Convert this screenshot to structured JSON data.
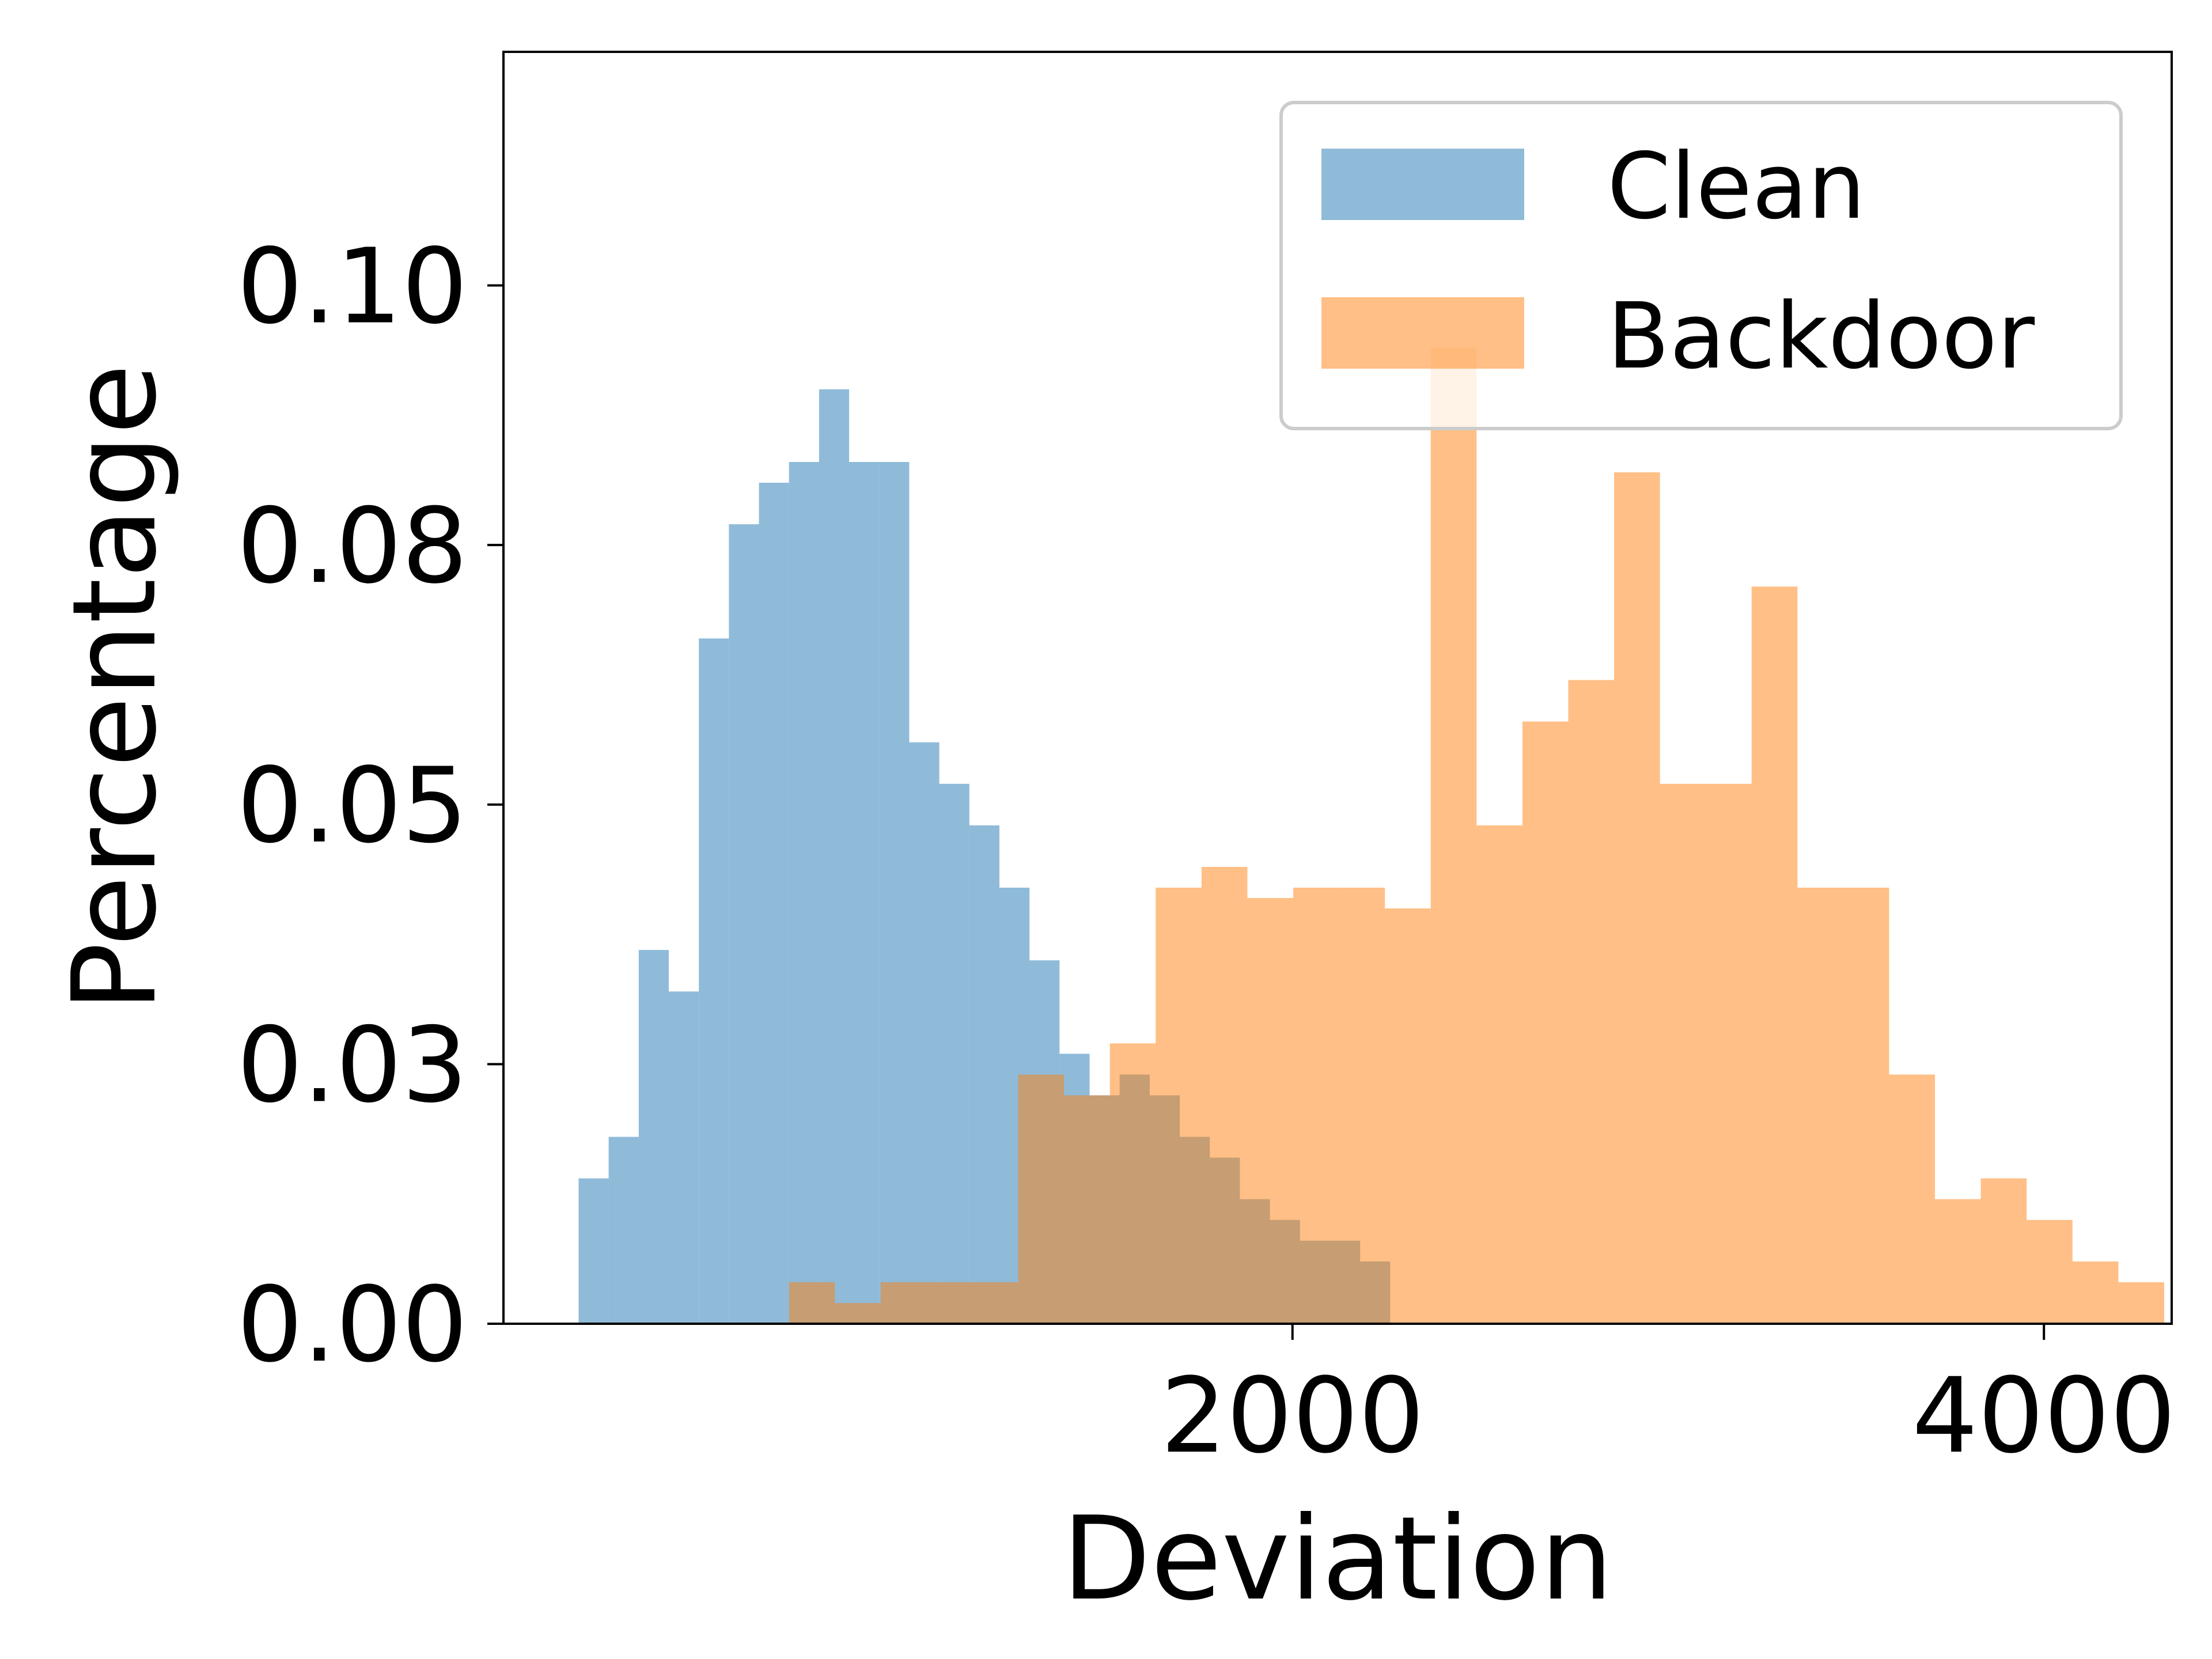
{
  "chart_data": {
    "type": "bar",
    "xlabel": "Deviation",
    "ylabel": "Percentage",
    "xlim": [
      -100,
      4340
    ],
    "ylim": [
      0,
      0.1225
    ],
    "xticks": [
      {
        "value": 2000,
        "label": "2000"
      },
      {
        "value": 4000,
        "label": "4000"
      }
    ],
    "yticks": [
      {
        "value": 0.0,
        "label": "0.00"
      },
      {
        "value": 0.025,
        "label": "0.03"
      },
      {
        "value": 0.05,
        "label": "0.05"
      },
      {
        "value": 0.075,
        "label": "0.08"
      },
      {
        "value": 0.1,
        "label": "0.10"
      }
    ],
    "grid": false,
    "legend_position": "upper-right",
    "series": [
      {
        "name": "Clean",
        "color": "#1f77b4",
        "opacity": 0.5,
        "bin_edges": [
          100,
          180,
          260,
          340,
          420,
          500,
          580,
          660,
          740,
          820,
          900,
          980,
          1060,
          1140,
          1220,
          1300,
          1380,
          1460,
          1540,
          1620,
          1700,
          1780,
          1860,
          1940,
          2020,
          2100,
          2180,
          2260
        ],
        "values": [
          0.014,
          0.018,
          0.036,
          0.032,
          0.066,
          0.077,
          0.081,
          0.083,
          0.09,
          0.083,
          0.083,
          0.056,
          0.052,
          0.048,
          0.042,
          0.035,
          0.026,
          0.022,
          0.024,
          0.022,
          0.018,
          0.016,
          0.012,
          0.01,
          0.008,
          0.008,
          0.006
        ]
      },
      {
        "name": "Backdoor",
        "color": "#ff7f0e",
        "opacity": 0.5,
        "bin_edges": [
          660,
          782,
          904,
          1026,
          1148,
          1270,
          1392,
          1514,
          1636,
          1758,
          1880,
          2002,
          2124,
          2246,
          2368,
          2490,
          2612,
          2734,
          2856,
          2978,
          3100,
          3222,
          3344,
          3466,
          3588,
          3710,
          3832,
          3954,
          4076,
          4198,
          4320
        ],
        "values": [
          0.004,
          0.002,
          0.004,
          0.004,
          0.004,
          0.024,
          0.022,
          0.027,
          0.042,
          0.044,
          0.041,
          0.042,
          0.042,
          0.04,
          0.094,
          0.048,
          0.058,
          0.062,
          0.082,
          0.052,
          0.052,
          0.071,
          0.042,
          0.042,
          0.024,
          0.012,
          0.014,
          0.01,
          0.006,
          0.004
        ]
      }
    ]
  }
}
